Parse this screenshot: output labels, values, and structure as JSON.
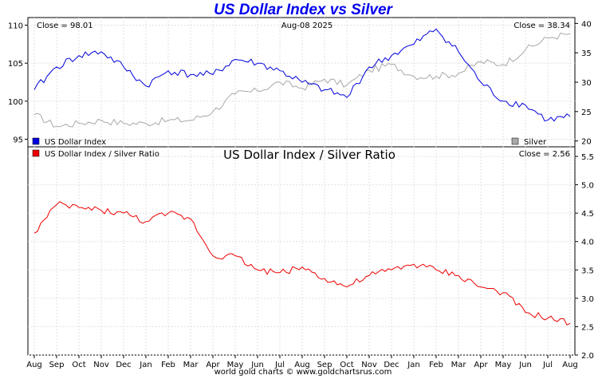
{
  "title": "US Dollar Index vs Silver",
  "footer": "world gold charts © www.goldchartsrus.com",
  "colors": {
    "usd": "#0000dd",
    "silver": "#a8a8a8",
    "ratio": "#ee0000",
    "grid": "#e0e0e0",
    "title": "#0000ee"
  },
  "top_panel": {
    "close_left": "Close = 98.01",
    "date": "Aug-08  2025",
    "close_right": "Close = 38.34",
    "legend_left": "US Dollar Index",
    "legend_right": "Silver"
  },
  "bottom_panel": {
    "title": "US Dollar Index / Silver Ratio",
    "legend": "US Dollar Index / Silver Ratio",
    "close": "Close = 2.56"
  },
  "chart_data": [
    {
      "type": "line",
      "title": "US Dollar Index vs Silver",
      "x": [
        "Aug",
        "Sep",
        "Oct",
        "Nov",
        "Dec",
        "Jan",
        "Feb",
        "Mar",
        "Apr",
        "May",
        "Jun",
        "Jul",
        "Aug",
        "Sep",
        "Oct",
        "Nov",
        "Dec",
        "Jan",
        "Feb",
        "Mar",
        "Apr",
        "May",
        "Jun",
        "Jul",
        "Aug"
      ],
      "x_ticks": [
        "Aug",
        "Sep",
        "Oct",
        "Nov",
        "Dec",
        "Jan",
        "Feb",
        "Mar",
        "Apr",
        "May",
        "Jun",
        "Jul",
        "Aug",
        "Sep",
        "Oct",
        "Nov",
        "Dec",
        "Jan",
        "Feb",
        "Mar",
        "Apr",
        "May",
        "Jun",
        "Jul",
        "Aug"
      ],
      "y_left_ticks": [
        "110",
        "105",
        "100",
        "95"
      ],
      "ylim_left": [
        94,
        111
      ],
      "y_right_ticks": [
        "40",
        "35",
        "30",
        "25",
        "20"
      ],
      "ylim_right": [
        19,
        41
      ],
      "grid": true,
      "series": [
        {
          "name": "US Dollar Index",
          "axis": "left",
          "values": [
            101.5,
            104.5,
            106.0,
            106.5,
            104.5,
            102.0,
            104.0,
            103.5,
            103.5,
            105.5,
            105.0,
            104.0,
            102.5,
            101.5,
            100.5,
            104.5,
            106.0,
            107.5,
            109.5,
            106.5,
            102.5,
            100.0,
            99.5,
            97.5,
            98.0
          ]
        },
        {
          "name": "Silver",
          "axis": "right",
          "values": [
            24.5,
            22.5,
            23.0,
            23.5,
            23.0,
            23.0,
            23.5,
            23.5,
            25.0,
            28.0,
            28.5,
            30.0,
            29.0,
            30.5,
            29.5,
            32.0,
            33.0,
            31.0,
            31.0,
            31.5,
            33.5,
            33.0,
            35.5,
            37.5,
            38.3
          ]
        }
      ]
    },
    {
      "type": "line",
      "title": "US Dollar Index / Silver Ratio",
      "x": [
        "Aug",
        "Sep",
        "Oct",
        "Nov",
        "Dec",
        "Jan",
        "Feb",
        "Mar",
        "Apr",
        "May",
        "Jun",
        "Jul",
        "Aug",
        "Sep",
        "Oct",
        "Nov",
        "Dec",
        "Jan",
        "Feb",
        "Mar",
        "Apr",
        "May",
        "Jun",
        "Jul",
        "Aug"
      ],
      "x_ticks": [
        "Aug",
        "Sep",
        "Oct",
        "Nov",
        "Dec",
        "Jan",
        "Feb",
        "Mar",
        "Apr",
        "May",
        "Jun",
        "Jul",
        "Aug",
        "Sep",
        "Oct",
        "Nov",
        "Dec",
        "Jan",
        "Feb",
        "Mar",
        "Apr",
        "May",
        "Jun",
        "Jul",
        "Aug"
      ],
      "y_right_ticks": [
        "5.5",
        "5.0",
        "4.5",
        "4.0",
        "3.5",
        "3.0",
        "2.5",
        "2.0"
      ],
      "ylim": [
        2.0,
        5.5
      ],
      "grid": true,
      "series": [
        {
          "name": "US Dollar Index / Silver Ratio",
          "axis": "right",
          "values": [
            4.15,
            4.65,
            4.6,
            4.55,
            4.5,
            4.35,
            4.5,
            4.4,
            3.75,
            3.75,
            3.5,
            3.45,
            3.55,
            3.35,
            3.2,
            3.4,
            3.5,
            3.6,
            3.5,
            3.4,
            3.2,
            3.1,
            2.75,
            2.65,
            2.56
          ]
        }
      ]
    }
  ]
}
